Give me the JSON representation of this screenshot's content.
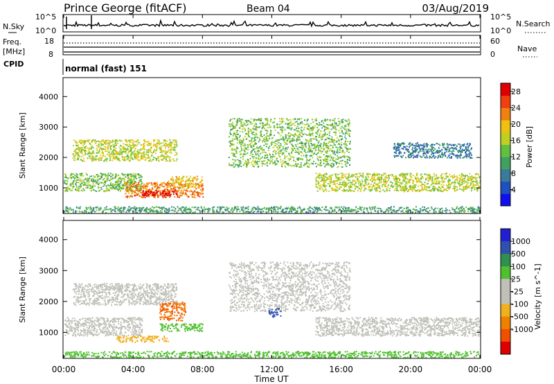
{
  "header": {
    "station": "Prince George (fitACF)",
    "beam": "Beam 04",
    "date": "03/Aug/2019"
  },
  "noise_panel": {
    "left_label": "N.Sky",
    "right_label": "N.Search",
    "tick_top": "10^5",
    "tick_bottom": "10^0"
  },
  "freq_panel": {
    "left_label_1": "Freq.",
    "left_label_2": "[MHz]",
    "right_label": "Nave",
    "left_ticks": [
      "18",
      "8"
    ],
    "right_ticks": [
      "60",
      "0"
    ]
  },
  "cpid_panel": {
    "label": "CPID",
    "value": "normal (fast) 151"
  },
  "colors": {
    "power_scale": [
      "#1010ee",
      "#2050c0",
      "#3a7a9a",
      "#40a060",
      "#60c040",
      "#c0d020",
      "#f0c010",
      "#f08010",
      "#f04010",
      "#e00000"
    ],
    "velocity_scale": [
      "#2020d0",
      "#3050b0",
      "#309050",
      "#50c030",
      "#c0c0b8",
      "#c0c0b8",
      "#f0b020",
      "#f08000",
      "#f05000",
      "#e00000"
    ]
  },
  "chart_data": [
    {
      "type": "heatmap",
      "name": "power",
      "ylabel": "Slant Range [km]",
      "y_ticks": [
        "4000",
        "3000",
        "2000",
        "1000"
      ],
      "ylim": [
        180,
        4600
      ],
      "x_ticks": [
        "00:00",
        "04:00",
        "08:00",
        "12:00",
        "16:00",
        "20:00",
        "00:00"
      ],
      "xlim_hours": [
        0,
        24
      ],
      "colorbar_label": "Power [dB]",
      "colorbar_ticks": [
        "28",
        "24",
        "20",
        "16",
        "12",
        "8",
        "4"
      ],
      "colorbar_range": [
        0,
        30
      ],
      "features": [
        {
          "t": [
            0.0,
            4.5
          ],
          "range": [
            900,
            1500
          ],
          "level": 12
        },
        {
          "t": [
            0.5,
            6.5
          ],
          "range": [
            1900,
            2600
          ],
          "level": 14
        },
        {
          "t": [
            3.5,
            8.0
          ],
          "range": [
            700,
            1200
          ],
          "level": 22
        },
        {
          "t": [
            4.5,
            6.5
          ],
          "range": [
            750,
            950
          ],
          "level": 29
        },
        {
          "t": [
            6.0,
            8.0
          ],
          "range": [
            1050,
            1400
          ],
          "level": 18
        },
        {
          "t": [
            9.5,
            16.5
          ],
          "range": [
            1700,
            3300
          ],
          "level": 11
        },
        {
          "t": [
            14.5,
            24.0
          ],
          "range": [
            900,
            1500
          ],
          "level": 16
        },
        {
          "t": [
            19.0,
            23.5
          ],
          "range": [
            2000,
            2500
          ],
          "level": 6
        },
        {
          "t": [
            0.0,
            24.0
          ],
          "range": [
            200,
            400
          ],
          "level": 8
        }
      ]
    },
    {
      "type": "heatmap",
      "name": "velocity",
      "ylabel": "Slant Range [km]",
      "y_ticks": [
        "4000",
        "3000",
        "2000",
        "1000"
      ],
      "ylim": [
        180,
        4600
      ],
      "x_ticks": [
        "00:00",
        "04:00",
        "08:00",
        "12:00",
        "16:00",
        "20:00",
        "00:00"
      ],
      "xlim_hours": [
        0,
        24
      ],
      "xlabel": "Time UT",
      "colorbar_label": "Velocity [m s^-1]",
      "colorbar_ticks": [
        "1000",
        "500",
        "100",
        "25",
        "-25",
        "-100",
        "-500",
        "-1000"
      ],
      "features": [
        {
          "t": [
            0.0,
            4.5
          ],
          "range": [
            900,
            1500
          ],
          "velocity": 0
        },
        {
          "t": [
            0.5,
            6.5
          ],
          "range": [
            1900,
            2600
          ],
          "velocity": 0
        },
        {
          "t": [
            3.0,
            6.0
          ],
          "range": [
            700,
            900
          ],
          "velocity": -80
        },
        {
          "t": [
            5.5,
            8.0
          ],
          "range": [
            1050,
            1300
          ],
          "velocity": 70
        },
        {
          "t": [
            5.5,
            7.0
          ],
          "range": [
            1400,
            2000
          ],
          "velocity": -500
        },
        {
          "t": [
            9.5,
            16.5
          ],
          "range": [
            1700,
            3300
          ],
          "velocity": 0
        },
        {
          "t": [
            14.5,
            24.0
          ],
          "range": [
            900,
            1500
          ],
          "velocity": 0
        },
        {
          "t": [
            11.8,
            12.5
          ],
          "range": [
            1500,
            1800
          ],
          "velocity": 400
        },
        {
          "t": [
            0.0,
            24.0
          ],
          "range": [
            200,
            400
          ],
          "velocity": 60
        }
      ]
    }
  ],
  "time_axis": {
    "label": "Time UT"
  }
}
